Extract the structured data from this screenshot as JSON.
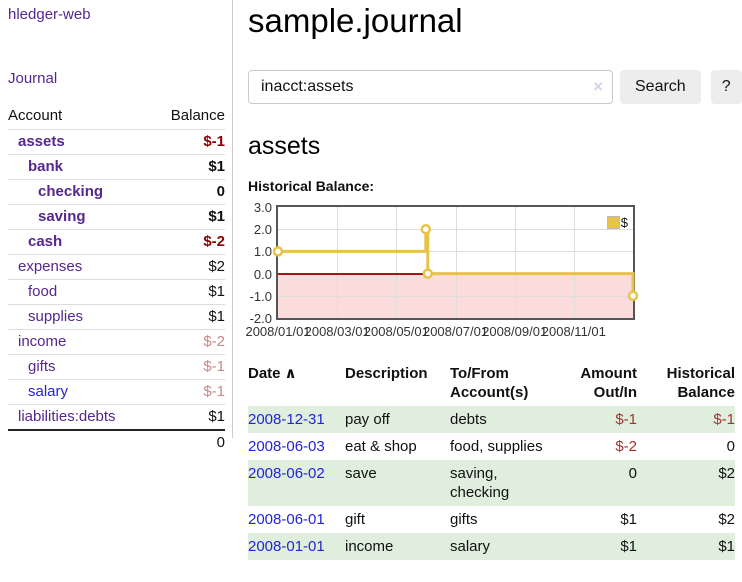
{
  "app": {
    "brand": "hledger-web",
    "nav_journal": "Journal"
  },
  "sidebar": {
    "headers": {
      "account": "Account",
      "balance": "Balance"
    },
    "accounts": [
      {
        "name": "assets",
        "depth": 1,
        "bold": true,
        "link_color": "purple",
        "balance": "$-1",
        "balance_style": "amt-neg-bold"
      },
      {
        "name": "bank",
        "depth": 2,
        "bold": true,
        "link_color": "purple",
        "balance": "$1",
        "balance_style": "amt-pos-bold"
      },
      {
        "name": "checking",
        "depth": 3,
        "bold": true,
        "link_color": "purple",
        "balance": "0",
        "balance_style": "amt-pos-bold"
      },
      {
        "name": "saving",
        "depth": 3,
        "bold": true,
        "link_color": "purple",
        "balance": "$1",
        "balance_style": "amt-pos-bold"
      },
      {
        "name": "cash",
        "depth": 2,
        "bold": true,
        "link_color": "purple",
        "balance": "$-2",
        "balance_style": "amt-neg-bold"
      },
      {
        "name": "expenses",
        "depth": 1,
        "bold": false,
        "link_color": "purple",
        "balance": "$2",
        "balance_style": "amt-pos"
      },
      {
        "name": "food",
        "depth": 2,
        "bold": false,
        "link_color": "purple",
        "balance": "$1",
        "balance_style": "amt-pos"
      },
      {
        "name": "supplies",
        "depth": 2,
        "bold": false,
        "link_color": "purple",
        "balance": "$1",
        "balance_style": "amt-pos"
      },
      {
        "name": "income",
        "depth": 1,
        "bold": false,
        "link_color": "purple",
        "balance": "$-2",
        "balance_style": "amt-neg-muted"
      },
      {
        "name": "gifts",
        "depth": 2,
        "bold": false,
        "link_color": "purple",
        "balance": "$-1",
        "balance_style": "amt-neg-muted"
      },
      {
        "name": "salary",
        "depth": 2,
        "bold": false,
        "link_color": "blue",
        "balance": "$-1",
        "balance_style": "amt-neg-muted"
      },
      {
        "name": "liabilities:debts",
        "depth": 1,
        "bold": false,
        "link_color": "purple",
        "balance": "$1",
        "balance_style": "amt-pos"
      }
    ],
    "total": "0"
  },
  "header": {
    "title": "sample.journal"
  },
  "search": {
    "query": "inacct:assets",
    "clear_icon": "×",
    "button_label": "Search",
    "help_label": "?"
  },
  "register": {
    "heading": "assets",
    "chart_title": "Historical Balance:",
    "table": {
      "headers": {
        "date": {
          "line1": "Date",
          "line2": "",
          "sort_icon": "∧"
        },
        "description": {
          "line1": "Description",
          "line2": ""
        },
        "accounts": {
          "line1": "To/From",
          "line2": "Account(s)"
        },
        "amount": {
          "line1": "Amount",
          "line2": "Out/In"
        },
        "balance": {
          "line1": "Historical",
          "line2": "Balance"
        }
      },
      "rows": [
        {
          "date": "2008-12-31",
          "description": "pay off",
          "accounts": "debts",
          "amount": "$-1",
          "amount_negative": true,
          "balance": "$-1",
          "balance_negative": true,
          "highlight": true
        },
        {
          "date": "2008-06-03",
          "description": "eat & shop",
          "accounts": "food, supplies",
          "amount": "$-2",
          "amount_negative": true,
          "balance": "0",
          "balance_negative": false,
          "highlight": false
        },
        {
          "date": "2008-06-02",
          "description": "save",
          "accounts": "saving, checking",
          "amount": "0",
          "amount_negative": false,
          "balance": "$2",
          "balance_negative": false,
          "highlight": true
        },
        {
          "date": "2008-06-01",
          "description": "gift",
          "accounts": "gifts",
          "amount": "$1",
          "amount_negative": false,
          "balance": "$2",
          "balance_negative": false,
          "highlight": false
        },
        {
          "date": "2008-01-01",
          "description": "income",
          "accounts": "salary",
          "amount": "$1",
          "amount_negative": false,
          "balance": "$1",
          "balance_negative": false,
          "highlight": true
        }
      ]
    }
  },
  "chart_data": {
    "type": "line",
    "step": true,
    "title": "Historical Balance",
    "legend": [
      {
        "label": "$",
        "color": "#E8C34A"
      }
    ],
    "legend_position": "top-right",
    "grid": true,
    "ylim": [
      -2,
      3
    ],
    "y_tick_labels": [
      "3.0",
      "2.0",
      "1.0",
      "0.0",
      "-1.0",
      "-2.0"
    ],
    "y_tick_values": [
      3,
      2,
      1,
      0,
      -1,
      -2
    ],
    "x_range": [
      "2008-01-01",
      "2008-12-31"
    ],
    "x_tick_labels": [
      "2008/01/01",
      "2008/03/01",
      "2008/05/01",
      "2008/07/01",
      "2008/09/01",
      "2008/11/01"
    ],
    "points": [
      {
        "x": "2008-01-01",
        "y": 1
      },
      {
        "x": "2008-06-01",
        "y": 2
      },
      {
        "x": "2008-06-03",
        "y": 0
      },
      {
        "x": "2008-12-31",
        "y": -1
      }
    ],
    "line_color": "#E8C34A",
    "marker": "open-circle",
    "zero_line_color": "#9E1A1A",
    "negative_region_color": "#FADCDC"
  }
}
